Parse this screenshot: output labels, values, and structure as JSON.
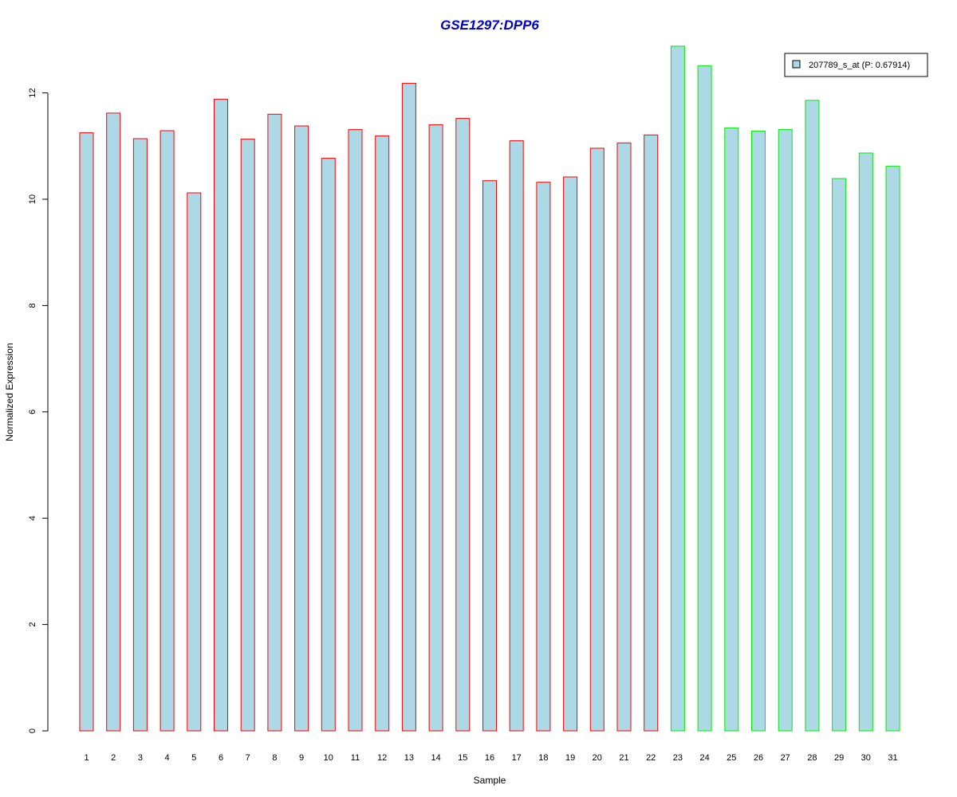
{
  "chart_data": {
    "type": "bar",
    "title": "GSE1297:DPP6",
    "xlabel": "Sample",
    "ylabel": "Normalized Expression",
    "ylim": [
      0,
      12.9
    ],
    "yticks": [
      0,
      2,
      4,
      6,
      8,
      10,
      12
    ],
    "categories": [
      "1",
      "2",
      "3",
      "4",
      "5",
      "6",
      "7",
      "8",
      "9",
      "10",
      "11",
      "12",
      "13",
      "14",
      "15",
      "16",
      "17",
      "18",
      "19",
      "20",
      "21",
      "22",
      "23",
      "24",
      "25",
      "26",
      "27",
      "28",
      "29",
      "30",
      "31"
    ],
    "series": [
      {
        "name": "207789_s_at (P: 0.67914)",
        "fill": "#add8e6",
        "values": [
          11.25,
          11.62,
          11.14,
          11.29,
          10.12,
          11.88,
          11.13,
          11.6,
          11.38,
          10.77,
          11.31,
          11.19,
          12.18,
          11.4,
          11.52,
          10.35,
          11.1,
          10.32,
          10.42,
          10.96,
          11.06,
          11.21,
          12.88,
          12.51,
          11.34,
          11.28,
          11.31,
          11.86,
          10.39,
          10.87,
          10.62
        ]
      }
    ],
    "group_colors": [
      "#ff0000",
      "#ff0000",
      "#ff0000",
      "#ff0000",
      "#ff0000",
      "#ff0000",
      "#ff0000",
      "#ff0000",
      "#ff0000",
      "#ff0000",
      "#ff0000",
      "#ff0000",
      "#ff0000",
      "#ff0000",
      "#ff0000",
      "#ff0000",
      "#ff0000",
      "#ff0000",
      "#ff0000",
      "#ff0000",
      "#ff0000",
      "#ff0000",
      "#00ee00",
      "#00ee00",
      "#00ee00",
      "#00ee00",
      "#00ee00",
      "#00ee00",
      "#00ee00",
      "#00ee00",
      "#00ee00"
    ],
    "legend": {
      "position": "top-right",
      "label": "207789_s_at (P: 0.67914)"
    },
    "grid": false
  }
}
